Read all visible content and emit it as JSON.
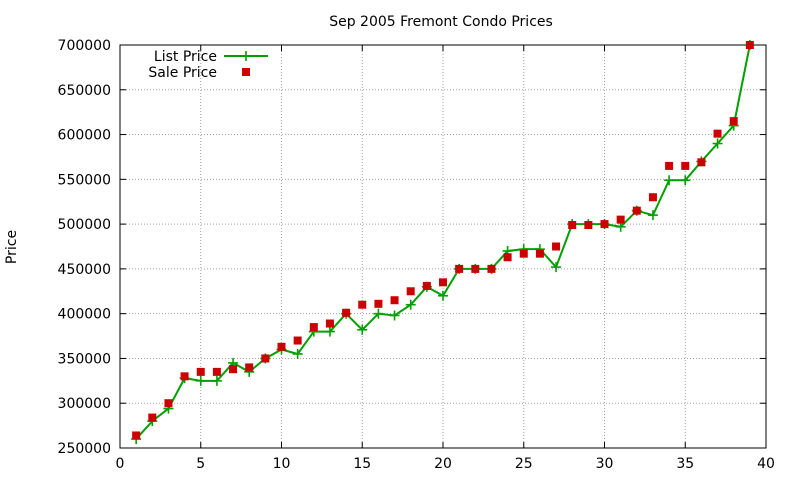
{
  "chart_data": {
    "type": "line",
    "title": "Sep 2005 Fremont Condo Prices",
    "xlabel": "",
    "ylabel": "Price",
    "xlim": [
      0,
      40
    ],
    "ylim": [
      250000,
      700000
    ],
    "xticks": [
      0,
      5,
      10,
      15,
      20,
      25,
      30,
      35,
      40
    ],
    "yticks": [
      250000,
      300000,
      350000,
      400000,
      450000,
      500000,
      550000,
      600000,
      650000,
      700000
    ],
    "grid": true,
    "legend_position": "top-left",
    "series": [
      {
        "name": "List Price",
        "style": "line+plus-markers",
        "color": "#00a000",
        "x": [
          1,
          2,
          3,
          4,
          5,
          6,
          7,
          8,
          9,
          10,
          11,
          12,
          13,
          14,
          15,
          16,
          17,
          18,
          19,
          20,
          21,
          22,
          23,
          24,
          25,
          26,
          27,
          28,
          29,
          30,
          31,
          32,
          33,
          34,
          35,
          36,
          37,
          38,
          39
        ],
        "y": [
          260000,
          280000,
          294000,
          328000,
          325000,
          325000,
          345000,
          335000,
          350000,
          360000,
          355000,
          380000,
          380000,
          400000,
          382000,
          400000,
          398000,
          410000,
          430000,
          420000,
          450000,
          450000,
          450000,
          470000,
          472000,
          472000,
          452000,
          500000,
          500000,
          500000,
          497000,
          515000,
          510000,
          549000,
          549000,
          570000,
          590000,
          610000,
          700000
        ]
      },
      {
        "name": "Sale Price",
        "style": "square-markers",
        "color": "#cc0000",
        "x": [
          1,
          2,
          3,
          4,
          5,
          6,
          7,
          8,
          9,
          10,
          11,
          12,
          13,
          14,
          15,
          16,
          17,
          18,
          19,
          20,
          21,
          22,
          23,
          24,
          25,
          26,
          27,
          28,
          29,
          30,
          31,
          32,
          33,
          34,
          35,
          36,
          37,
          38,
          39
        ],
        "y": [
          264000,
          284000,
          300000,
          330000,
          335000,
          335000,
          338000,
          340000,
          350000,
          363000,
          370000,
          385000,
          389000,
          401000,
          410000,
          411000,
          415000,
          425000,
          431000,
          435000,
          450000,
          450000,
          450000,
          463000,
          467000,
          467000,
          475000,
          499000,
          499000,
          500000,
          505000,
          515000,
          530000,
          565000,
          565000,
          569000,
          601000,
          615000,
          700000
        ]
      }
    ]
  }
}
